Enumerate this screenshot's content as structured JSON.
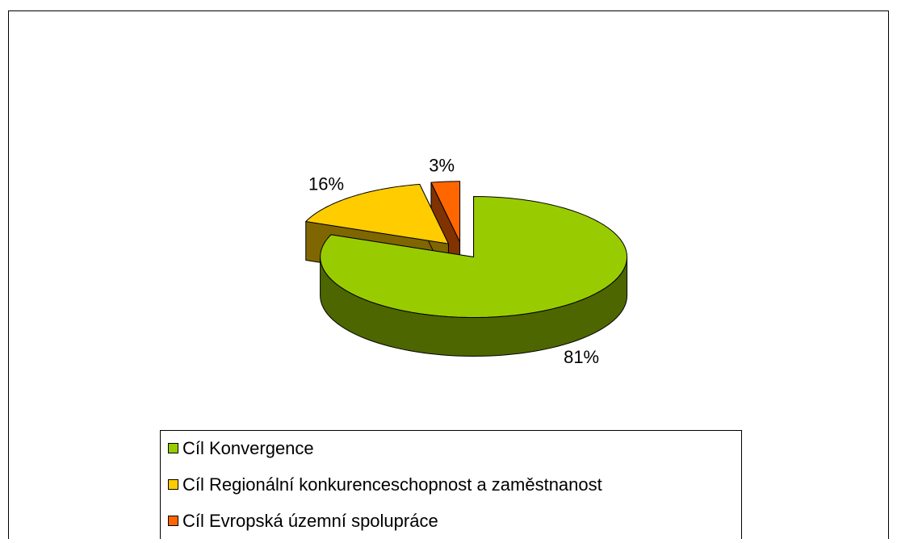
{
  "chart_data": {
    "type": "pie",
    "categories": [
      "Cíl Konvergence",
      "Cíl Regionální konkurenceschopnost a zaměstnanost",
      "Cíl Evropská územní spolupráce"
    ],
    "values": [
      81,
      16,
      3
    ],
    "value_labels": [
      "81%",
      "16%",
      "3%"
    ],
    "colors": [
      "#99cc00",
      "#ffcc00",
      "#ff6600"
    ],
    "side_colors": [
      "#4d6600",
      "#806600",
      "#803300"
    ],
    "legend": "bottom"
  }
}
